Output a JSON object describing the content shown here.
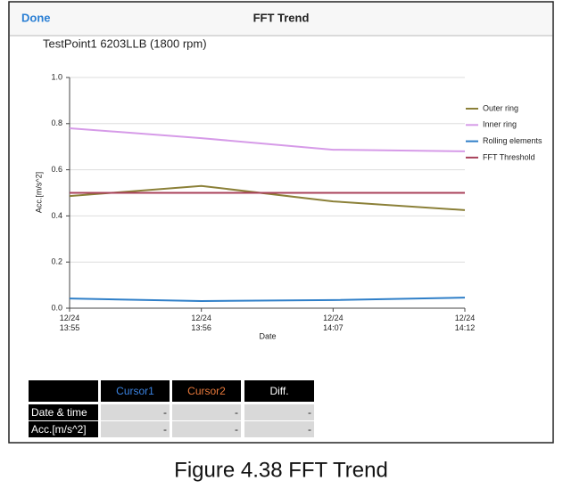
{
  "header": {
    "left_button": "Done",
    "title": "FFT Trend"
  },
  "chart_data": {
    "type": "line",
    "title": "TestPoint1  6203LLB (1800 rpm)",
    "x_label": "Date",
    "y_label": "Acc.[m/s^2]",
    "categories": [
      "12/24\n13:55",
      "12/24\n13:56",
      "12/24\n14:07",
      "12/24\n14:12"
    ],
    "series": [
      {
        "name": "Outer ring",
        "color": "#8b8038",
        "values": [
          0.486,
          0.53,
          0.463,
          0.425
        ]
      },
      {
        "name": "Inner ring",
        "color": "#d69be8",
        "values": [
          0.78,
          0.737,
          0.687,
          0.68
        ]
      },
      {
        "name": "Rolling elements",
        "color": "#2f7fc8",
        "values": [
          0.042,
          0.031,
          0.035,
          0.046
        ]
      },
      {
        "name": "FFT Threshold",
        "color": "#a8405a",
        "values": [
          0.5,
          0.5,
          0.5,
          0.5
        ]
      }
    ],
    "ylim": [
      0,
      1
    ],
    "yticks": [
      {
        "value": 0,
        "label": "0.0"
      },
      0.2,
      0.4,
      0.6,
      0.8,
      {
        "value": 1,
        "label": "1.0"
      }
    ],
    "grid": true,
    "legend": "top-right"
  },
  "table": {
    "header": [
      "Cursor1",
      "Cursor2",
      "Diff."
    ],
    "rows": [
      [
        "Date & time",
        "-",
        "-",
        "-"
      ],
      [
        "Acc.[m/s^2]",
        "-",
        "-",
        "-"
      ]
    ]
  },
  "caption": "Figure 4.38    FFT Trend"
}
